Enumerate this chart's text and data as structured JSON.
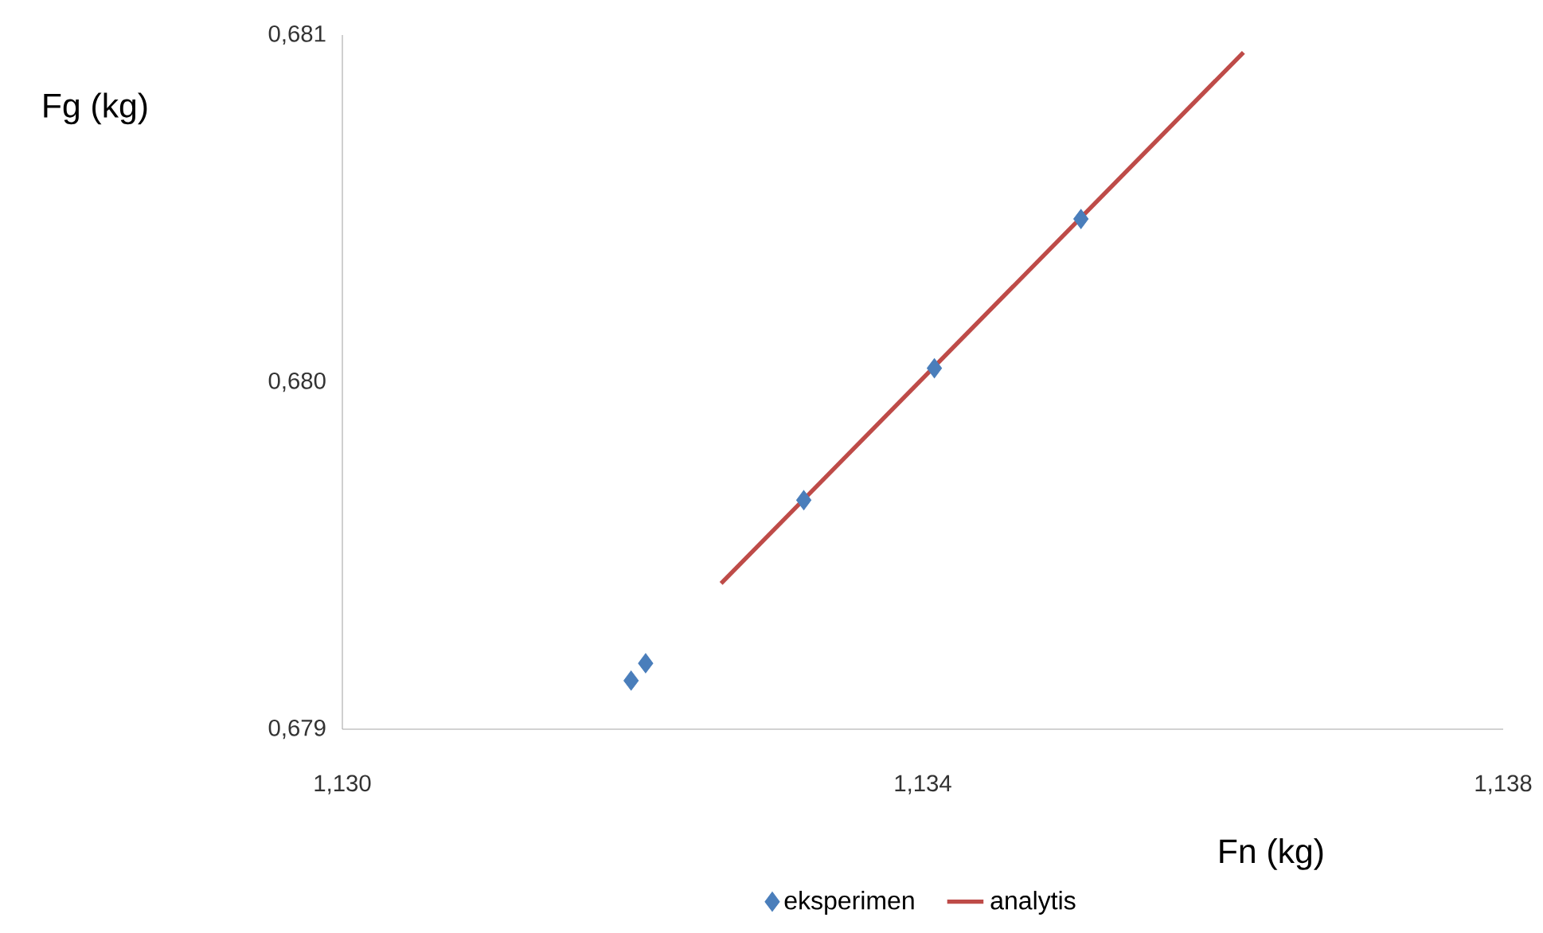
{
  "chart_data": {
    "type": "scatter",
    "xlabel": "Fn (kg)",
    "ylabel": "Fg (kg)",
    "xlim": [
      1.13,
      1.138
    ],
    "ylim": [
      0.679,
      0.681
    ],
    "xticks": [
      {
        "value": 1.13,
        "label": "1,130"
      },
      {
        "value": 1.134,
        "label": "1,134"
      },
      {
        "value": 1.138,
        "label": "1,138"
      }
    ],
    "yticks": [
      {
        "value": 0.679,
        "label": "0,679"
      },
      {
        "value": 0.68,
        "label": "0,680"
      },
      {
        "value": 0.681,
        "label": "0,681"
      }
    ],
    "grid": false,
    "legend": "bottom",
    "series": [
      {
        "name": "eksperimen",
        "marker": "diamond",
        "color": "#4a7ebb",
        "x": [
          1.13199,
          1.13209,
          1.13318,
          1.13408,
          1.13509
        ],
        "values": [
          0.67914,
          0.67919,
          0.67966,
          0.68004,
          0.68047
        ]
      },
      {
        "name": "analytis",
        "type": "line",
        "marker": "none",
        "color": "#be4b48",
        "x": [
          1.13261,
          1.13621
        ],
        "values": [
          0.67942,
          0.68095
        ]
      }
    ]
  }
}
